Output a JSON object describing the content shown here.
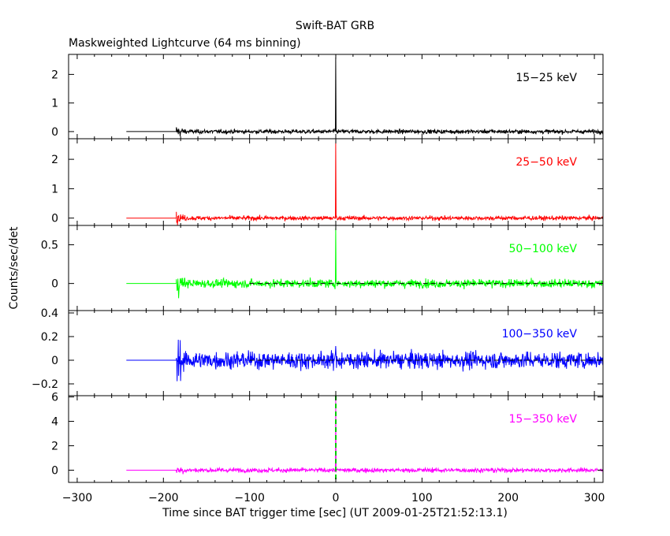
{
  "chart_data": {
    "type": "line",
    "title": "Swift-BAT GRB",
    "subtitle": "Maskweighted Lightcurve (64 ms binning)",
    "xlabel": "Time since BAT trigger time [sec] (UT 2009-01-25T21:52:13.1)",
    "ylabel": "Counts/sec/det",
    "xlim": [
      -310,
      310
    ],
    "x_ticks": [
      "−300",
      "−200",
      "−100",
      "0",
      "100",
      "200",
      "300"
    ],
    "x_tick_values": [
      -300,
      -200,
      -100,
      0,
      100,
      200,
      300
    ],
    "data_start": -243,
    "noise_start": -185,
    "series": [
      {
        "name": "15−25 keV",
        "color": "#000000",
        "ylim": [
          -0.25,
          2.7
        ],
        "y_ticks": [
          "0",
          "1",
          "2"
        ],
        "y_tick_values": [
          0,
          1,
          2
        ],
        "baseline": 0.0,
        "noise": 0.06,
        "peak": 2.6,
        "show_zero_line": false,
        "show_trigger_line": false
      },
      {
        "name": "25−50 keV",
        "color": "#ff0000",
        "ylim": [
          -0.25,
          2.7
        ],
        "y_ticks": [
          "0",
          "1",
          "2"
        ],
        "y_tick_values": [
          0,
          1,
          2
        ],
        "baseline": 0.0,
        "noise": 0.06,
        "peak": 2.55,
        "show_zero_line": false,
        "show_trigger_line": false
      },
      {
        "name": "50−100 keV",
        "color": "#00ff00",
        "ylim": [
          -0.35,
          0.75
        ],
        "y_ticks": [
          "0",
          "0.5"
        ],
        "y_tick_values": [
          0,
          0.5
        ],
        "baseline": 0.0,
        "noise": 0.045,
        "peak": 0.72,
        "show_zero_line": true,
        "show_trigger_line": false
      },
      {
        "name": "100−350 keV",
        "color": "#0000ff",
        "ylim": [
          -0.3,
          0.42
        ],
        "y_ticks": [
          "−0.2",
          "0",
          "0.2",
          "0.4"
        ],
        "y_tick_values": [
          -0.2,
          0,
          0.2,
          0.4
        ],
        "baseline": 0.0,
        "noise": 0.06,
        "peak": 0.12,
        "show_zero_line": true,
        "show_trigger_line": false
      },
      {
        "name": "15−350 keV",
        "color": "#ff00ff",
        "ylim": [
          -1.0,
          6.1
        ],
        "y_ticks": [
          "0",
          "2",
          "4",
          "6"
        ],
        "y_tick_values": [
          0,
          2,
          4,
          6
        ],
        "baseline": 0.0,
        "noise": 0.15,
        "peak": 5.9,
        "show_zero_line": false,
        "show_trigger_line": true
      }
    ]
  }
}
